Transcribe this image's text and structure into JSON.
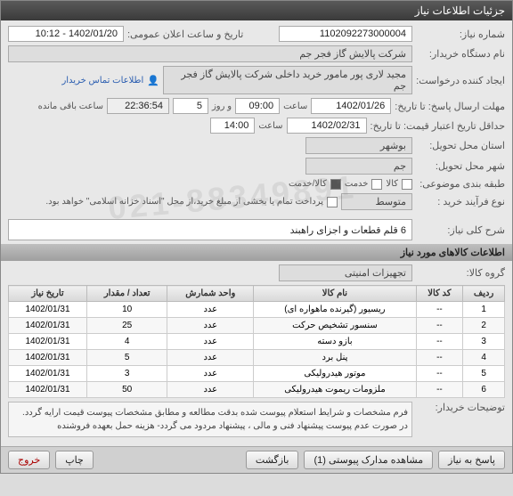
{
  "window": {
    "title": "جزئیات اطلاعات نیاز"
  },
  "fields": {
    "need_no_label": "شماره نیاز:",
    "need_no": "1102092273000004",
    "announce_label": "تاریخ و ساعت اعلان عمومی:",
    "announce_value": "1402/01/20 - 10:12",
    "buyer_org_label": "نام دستگاه خریدار:",
    "buyer_org": "شرکت پالایش گاز فجر جم",
    "requester_label": "ایجاد کننده درخواست:",
    "requester": "مجید  لاری پور مامور خرید داخلی شرکت پالایش گاز فجر جم",
    "contact_link": "اطلاعات تماس خریدار",
    "deadline_label": "مهلت ارسال پاسخ: تا تاریخ:",
    "deadline_date": "1402/01/26",
    "time_label": "ساعت",
    "deadline_time": "09:00",
    "day_label": "و روز",
    "days": "5",
    "remain_time": "22:36:54",
    "remain_label": "ساعت باقی مانده",
    "validity_label": "حداقل تاریخ اعتبار قیمت: تا تاریخ:",
    "validity_date": "1402/02/31",
    "validity_time": "14:00",
    "province_label": "استان محل تحویل:",
    "province": "بوشهر",
    "city_label": "شهر محل تحویل:",
    "city": "جم",
    "category_label": "طبقه بندی موضوعی:",
    "cat_goods": "کالا",
    "cat_service": "خدمت",
    "cat_goods_service": "کالا/خدمت",
    "process_label": "نوع فرآیند خرید :",
    "process_val": "متوسط",
    "payment_note": "پرداخت تمام یا بخشی از مبلغ خرید،از محل \"اسناد خزانه اسلامی\" خواهد بود.",
    "summary_label": "شرح کلی نیاز:",
    "summary": "6 قلم قطعات و اجزای راهبند",
    "group_label": "گروه کالا:",
    "group": "تجهیزات امنیتی",
    "buyer_note_label": "توضیحات خریدار:",
    "buyer_note": "فرم مشخصات و شرایط استعلام  پیوست شده بدقت مطالعه و مطابق مشخصات پیوست قیمت ارایه گردد. در صورت عدم پیوست پیشنهاد فنی و مالی ، پیشنهاد مردود می گردد- هزینه حمل بعهده فروشنده"
  },
  "sections": {
    "items_header": "اطلاعات کالاهای مورد نیاز"
  },
  "table": {
    "columns": [
      "ردیف",
      "کد کالا",
      "نام کالا",
      "واحد شمارش",
      "تعداد / مقدار",
      "تاریخ نیاز"
    ],
    "rows": [
      [
        "1",
        "--",
        "ریسیور (گیرنده ماهواره ای)",
        "عدد",
        "10",
        "1402/01/31"
      ],
      [
        "2",
        "--",
        "سنسور تشخیص حرکت",
        "عدد",
        "25",
        "1402/01/31"
      ],
      [
        "3",
        "--",
        "بازو دسته",
        "عدد",
        "4",
        "1402/01/31"
      ],
      [
        "4",
        "--",
        "پنل برد",
        "عدد",
        "5",
        "1402/01/31"
      ],
      [
        "5",
        "--",
        "موتور هیدرولیکی",
        "عدد",
        "3",
        "1402/01/31"
      ],
      [
        "6",
        "--",
        "ملزومات ریموت هیدرولیکی",
        "عدد",
        "50",
        "1402/01/31"
      ]
    ]
  },
  "footer": {
    "reply": "پاسخ به نیاز",
    "attachments": "مشاهده مدارک پیوستی (1)",
    "refresh": "بازگشت",
    "print": "چاپ",
    "exit": "خروج"
  },
  "watermark": "021-88349891"
}
